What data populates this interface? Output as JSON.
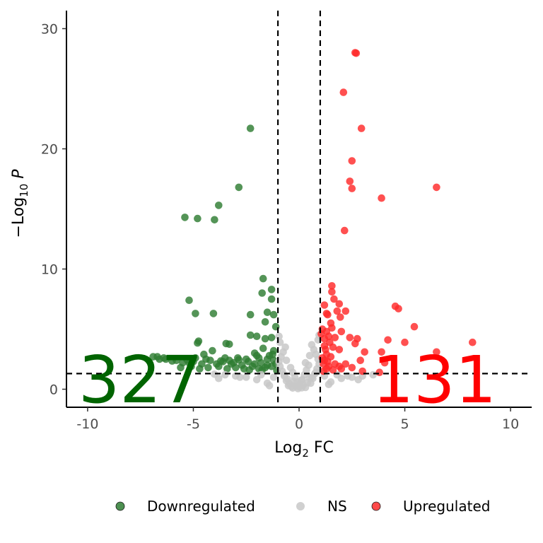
{
  "chart_data": {
    "type": "scatter",
    "title": "",
    "xlabel": {
      "base": "Log",
      "sub": "2",
      "tail": " FC"
    },
    "ylabel": {
      "prefix": "−Log",
      "sub": "10",
      "italic": " P"
    },
    "xlim": [
      -11,
      11
    ],
    "ylim": [
      -1.5,
      31.5
    ],
    "x_ticks": [
      -10,
      -5,
      0,
      5,
      10
    ],
    "x_tick_labels": [
      "-10",
      "-5",
      "0",
      "5",
      "10"
    ],
    "y_ticks": [
      0,
      10,
      20,
      30
    ],
    "y_tick_labels": [
      "0",
      "10",
      "20",
      "30"
    ],
    "grid": false,
    "legend_position": "bottom",
    "thresholds": {
      "fc_cutoffs": [
        -1,
        1
      ],
      "p_cutoff": 1.3
    },
    "counts": {
      "down": {
        "label": "327",
        "color": "#006400"
      },
      "up": {
        "label": "131",
        "color": "#ff0000"
      }
    },
    "series": [
      {
        "name": "Downregulated",
        "color": "#2e7d32",
        "points": [
          [
            -2.3,
            21.7
          ],
          [
            -2.85,
            16.8
          ],
          [
            -3.8,
            15.3
          ],
          [
            -5.4,
            14.3
          ],
          [
            -4.8,
            14.2
          ],
          [
            -4.0,
            14.1
          ],
          [
            -1.7,
            9.2
          ],
          [
            -1.3,
            8.3
          ],
          [
            -1.75,
            8.0
          ],
          [
            -1.3,
            7.5
          ],
          [
            -5.2,
            7.4
          ],
          [
            -4.9,
            6.3
          ],
          [
            -4.05,
            6.3
          ],
          [
            -1.5,
            6.4
          ],
          [
            -2.3,
            6.2
          ],
          [
            -1.2,
            6.2
          ],
          [
            -1.6,
            5.6
          ],
          [
            -1.1,
            5.2
          ],
          [
            -2.3,
            4.5
          ],
          [
            -2.0,
            4.4
          ],
          [
            -1.6,
            4.2
          ],
          [
            -4.75,
            4.0
          ],
          [
            -4.8,
            3.85
          ],
          [
            -3.45,
            3.8
          ],
          [
            -3.3,
            3.75
          ],
          [
            -1.3,
            4.3
          ],
          [
            -1.2,
            3.2
          ],
          [
            -4.1,
            3.2
          ],
          [
            -2.1,
            3.0
          ],
          [
            -1.7,
            3.4
          ],
          [
            -1.4,
            2.8
          ],
          [
            -1.9,
            2.6
          ],
          [
            -2.5,
            2.5
          ],
          [
            -2.85,
            2.45
          ],
          [
            -3.3,
            2.4
          ],
          [
            -3.6,
            2.3
          ],
          [
            -4.2,
            2.4
          ],
          [
            -4.6,
            2.1
          ],
          [
            -5.0,
            2.3
          ],
          [
            -5.5,
            2.2
          ],
          [
            -6.0,
            2.35
          ],
          [
            -6.3,
            2.5
          ],
          [
            -6.7,
            2.7
          ],
          [
            -6.4,
            2.6
          ],
          [
            -5.8,
            2.4
          ],
          [
            -5.2,
            2.2
          ],
          [
            -4.4,
            2.5
          ],
          [
            -3.9,
            2.1
          ],
          [
            -3.1,
            2.2
          ],
          [
            -2.7,
            2.0
          ],
          [
            -2.4,
            2.3
          ],
          [
            -2.1,
            2.1
          ],
          [
            -1.8,
            2.2
          ],
          [
            -1.5,
            2.0
          ],
          [
            -1.2,
            2.4
          ],
          [
            -1.1,
            2.1
          ],
          [
            -1.3,
            1.9
          ],
          [
            -1.6,
            1.8
          ],
          [
            -1.9,
            1.7
          ],
          [
            -2.2,
            1.9
          ],
          [
            -2.6,
            1.7
          ],
          [
            -3.0,
            1.8
          ],
          [
            -3.4,
            1.7
          ],
          [
            -3.8,
            1.9
          ],
          [
            -4.3,
            1.8
          ],
          [
            -4.7,
            1.7
          ],
          [
            -5.1,
            1.9
          ],
          [
            -5.6,
            1.8
          ],
          [
            -2.9,
            2.6
          ],
          [
            -3.5,
            2.6
          ],
          [
            -1.5,
            2.5
          ],
          [
            -1.25,
            2.9
          ],
          [
            -2.0,
            2.8
          ],
          [
            -4.5,
            2.9
          ],
          [
            -6.9,
            2.7
          ],
          [
            -6.6,
            2.5
          ],
          [
            -3.2,
            2.1
          ],
          [
            -1.75,
            1.6
          ],
          [
            -2.35,
            1.6
          ],
          [
            -1.05,
            1.55
          ],
          [
            -3.7,
            2.35
          ],
          [
            -4.9,
            2.6
          ],
          [
            -5.3,
            2.45
          ]
        ]
      },
      {
        "name": "NS",
        "color": "#c8c8c8",
        "points": [
          [
            0.0,
            0.2
          ],
          [
            0.05,
            0.4
          ],
          [
            -0.1,
            0.6
          ],
          [
            0.15,
            0.8
          ],
          [
            -0.2,
            1.0
          ],
          [
            0.25,
            1.2
          ],
          [
            -0.3,
            1.4
          ],
          [
            0.35,
            1.6
          ],
          [
            -0.4,
            1.8
          ],
          [
            0.45,
            2.0
          ],
          [
            -0.5,
            0.3
          ],
          [
            0.55,
            0.5
          ],
          [
            -0.6,
            0.7
          ],
          [
            0.65,
            0.9
          ],
          [
            -0.7,
            1.1
          ],
          [
            0.75,
            1.3
          ],
          [
            -0.8,
            1.5
          ],
          [
            0.85,
            1.7
          ],
          [
            -0.9,
            1.9
          ],
          [
            0.95,
            2.1
          ],
          [
            -0.95,
            2.3
          ],
          [
            0.9,
            2.5
          ],
          [
            -0.85,
            2.7
          ],
          [
            0.8,
            2.9
          ],
          [
            -0.75,
            3.1
          ],
          [
            0.7,
            3.3
          ],
          [
            -0.65,
            3.5
          ],
          [
            0.6,
            3.7
          ],
          [
            -0.9,
            3.9
          ],
          [
            0.9,
            4.1
          ],
          [
            -0.95,
            4.4
          ],
          [
            0.95,
            4.5
          ],
          [
            -0.3,
            0.1
          ],
          [
            0.3,
            0.15
          ],
          [
            -0.15,
            0.25
          ],
          [
            0.2,
            0.35
          ],
          [
            -0.45,
            0.45
          ],
          [
            0.4,
            0.55
          ],
          [
            -0.25,
            0.65
          ],
          [
            0.1,
            0.75
          ],
          [
            -0.55,
            0.85
          ],
          [
            0.5,
            0.95
          ],
          [
            -0.05,
            0.05
          ],
          [
            0.12,
            0.12
          ],
          [
            -0.35,
            0.22
          ],
          [
            0.6,
            1.0
          ],
          [
            -0.7,
            1.2
          ],
          [
            0.8,
            1.4
          ],
          [
            -1.5,
            0.5
          ],
          [
            -2.0,
            0.8
          ],
          [
            -2.5,
            1.0
          ],
          [
            -3.0,
            1.1
          ],
          [
            -3.5,
            1.2
          ],
          [
            -4.0,
            1.25
          ],
          [
            -1.8,
            1.2
          ],
          [
            -2.8,
            1.0
          ],
          [
            -3.8,
            0.9
          ],
          [
            1.5,
            0.6
          ],
          [
            2.0,
            0.9
          ],
          [
            2.5,
            1.0
          ],
          [
            3.0,
            1.1
          ],
          [
            3.5,
            1.2
          ],
          [
            1.8,
            1.2
          ],
          [
            2.3,
            1.1
          ],
          [
            2.8,
            0.8
          ],
          [
            -1.2,
            1.0
          ],
          [
            1.2,
            1.1
          ],
          [
            -1.4,
            0.3
          ],
          [
            1.4,
            0.4
          ],
          [
            0.3,
            2.2
          ],
          [
            -0.6,
            2.4
          ],
          [
            0.5,
            2.8
          ]
        ]
      },
      {
        "name": "Upregulated",
        "color": "#ff2a2a",
        "points": [
          [
            2.65,
            28.0
          ],
          [
            2.7,
            27.95
          ],
          [
            2.1,
            24.7
          ],
          [
            2.95,
            21.7
          ],
          [
            2.5,
            19.0
          ],
          [
            2.4,
            17.3
          ],
          [
            2.5,
            16.7
          ],
          [
            6.5,
            16.8
          ],
          [
            3.9,
            15.9
          ],
          [
            2.15,
            13.2
          ],
          [
            1.55,
            8.6
          ],
          [
            1.55,
            8.1
          ],
          [
            1.65,
            7.5
          ],
          [
            1.9,
            7.1
          ],
          [
            1.2,
            7.0
          ],
          [
            2.2,
            6.5
          ],
          [
            1.3,
            6.3
          ],
          [
            1.35,
            6.2
          ],
          [
            1.8,
            6.5
          ],
          [
            1.95,
            6.0
          ],
          [
            4.55,
            6.9
          ],
          [
            4.7,
            6.7
          ],
          [
            1.5,
            5.5
          ],
          [
            1.55,
            5.1
          ],
          [
            1.1,
            5.0
          ],
          [
            1.3,
            4.8
          ],
          [
            2.0,
            4.8
          ],
          [
            5.45,
            5.2
          ],
          [
            1.4,
            4.4
          ],
          [
            1.2,
            4.2
          ],
          [
            2.4,
            4.3
          ],
          [
            2.75,
            4.2
          ],
          [
            2.65,
            3.8
          ],
          [
            4.2,
            4.1
          ],
          [
            5.0,
            3.9
          ],
          [
            8.2,
            3.9
          ],
          [
            1.2,
            3.6
          ],
          [
            1.6,
            3.5
          ],
          [
            1.9,
            3.3
          ],
          [
            3.1,
            3.1
          ],
          [
            3.9,
            3.1
          ],
          [
            6.5,
            3.1
          ],
          [
            1.3,
            2.9
          ],
          [
            1.5,
            2.7
          ],
          [
            2.9,
            2.4
          ],
          [
            4.05,
            2.2
          ],
          [
            1.2,
            2.4
          ],
          [
            1.15,
            2.1
          ],
          [
            1.4,
            1.9
          ],
          [
            1.7,
            2.1
          ],
          [
            1.9,
            1.9
          ],
          [
            2.2,
            2.1
          ],
          [
            1.3,
            1.7
          ],
          [
            2.0,
            1.7
          ],
          [
            3.0,
            1.5
          ],
          [
            3.8,
            1.4
          ],
          [
            1.1,
            2.6
          ],
          [
            1.25,
            3.3
          ],
          [
            1.45,
            3.9
          ],
          [
            1.05,
            4.6
          ],
          [
            1.7,
            4.3
          ],
          [
            1.35,
            2.3
          ],
          [
            1.6,
            1.6
          ],
          [
            2.5,
            1.8
          ],
          [
            1.15,
            1.5
          ]
        ]
      }
    ]
  }
}
